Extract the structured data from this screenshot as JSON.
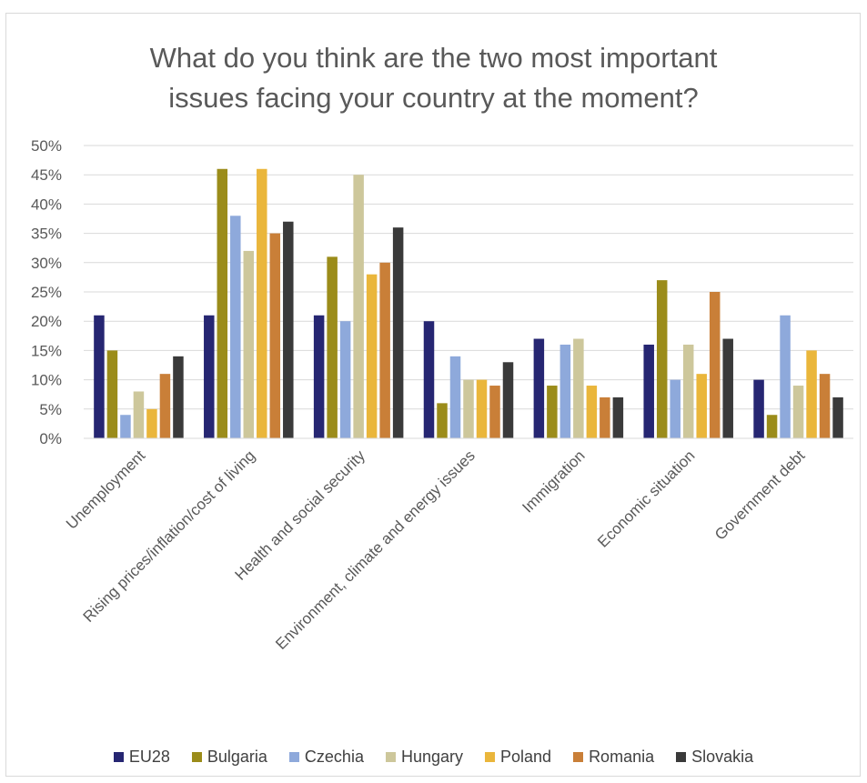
{
  "chart_data": {
    "type": "bar",
    "title_lines": [
      "What do you think are the two most important",
      "issues facing your country at the moment?"
    ],
    "categories": [
      "Unemployment",
      "Rising prices/inflation/cost of living",
      "Health and social security",
      "Environment, climate and energy issues",
      "Immigration",
      "Economic situation",
      "Government debt"
    ],
    "series": [
      {
        "name": "EU28",
        "color": "#262672",
        "values": [
          21,
          21,
          21,
          20,
          17,
          16,
          10
        ]
      },
      {
        "name": "Bulgaria",
        "color": "#9b8c1a",
        "values": [
          15,
          46,
          31,
          6,
          9,
          27,
          4
        ]
      },
      {
        "name": "Czechia",
        "color": "#8ea9db",
        "values": [
          4,
          38,
          20,
          14,
          16,
          10,
          21
        ]
      },
      {
        "name": "Hungary",
        "color": "#cdc79b",
        "values": [
          8,
          32,
          45,
          10,
          17,
          16,
          9
        ]
      },
      {
        "name": "Poland",
        "color": "#eab63b",
        "values": [
          5,
          46,
          28,
          10,
          9,
          11,
          15
        ]
      },
      {
        "name": "Romania",
        "color": "#c97f38",
        "values": [
          11,
          35,
          30,
          9,
          7,
          25,
          11
        ]
      },
      {
        "name": "Slovakia",
        "color": "#3a3a3a",
        "values": [
          14,
          37,
          36,
          13,
          7,
          17,
          7
        ]
      }
    ],
    "ylim": [
      0,
      50
    ],
    "ytick_step": 5,
    "ytick_suffix": "%",
    "grid": true,
    "legend_position": "bottom"
  }
}
